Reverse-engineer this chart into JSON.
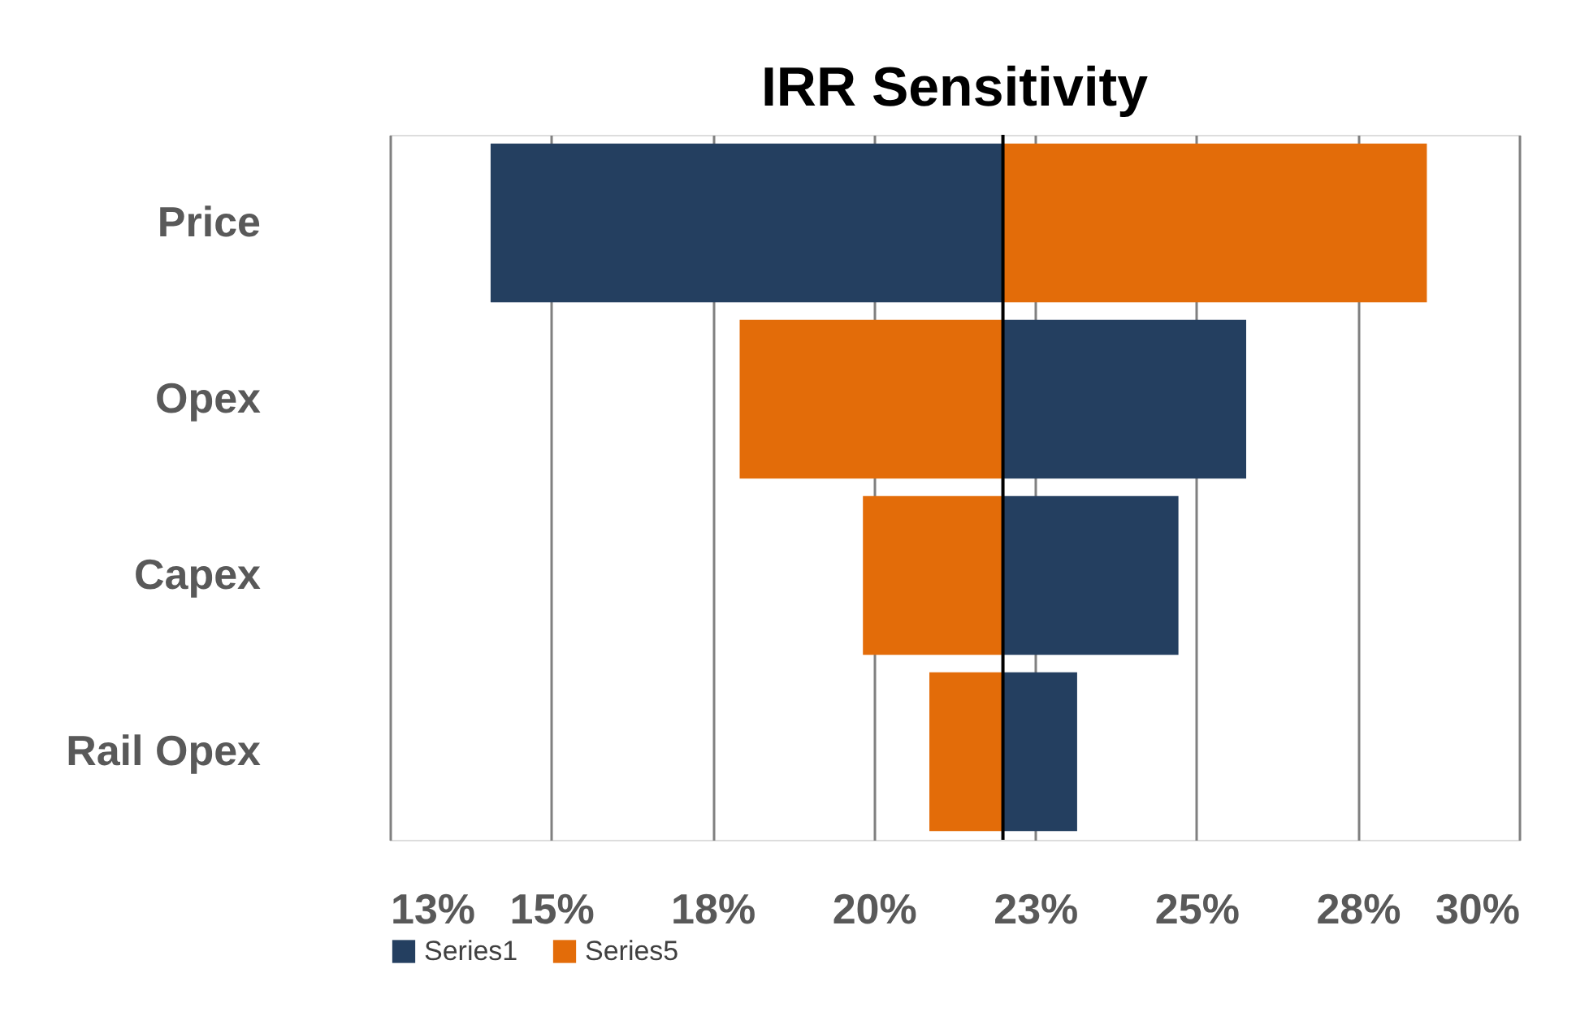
{
  "chart_data": {
    "type": "bar",
    "orientation": "horizontal",
    "title": "IRR Sensitivity",
    "categories": [
      "Price",
      "Opex",
      "Capex",
      "Rail Opex"
    ],
    "series": [
      {
        "name": "Series1",
        "color": "#243f60",
        "base": [
          14.06,
          22.0,
          22.0,
          22.0
        ],
        "values": [
          7.94,
          3.77,
          2.72,
          1.15
        ]
      },
      {
        "name": "Series5",
        "color": "#e36c09",
        "base": [
          22.0,
          17.92,
          19.83,
          20.86
        ],
        "values": [
          6.57,
          4.08,
          2.17,
          1.14
        ]
      }
    ],
    "xlim": [
      12.5,
      30
    ],
    "xticks": [
      {
        "value": 12.5,
        "label": "13%"
      },
      {
        "value": 15,
        "label": "15%"
      },
      {
        "value": 17.5,
        "label": "18%"
      },
      {
        "value": 20,
        "label": "20%"
      },
      {
        "value": 22.5,
        "label": "23%"
      },
      {
        "value": 25,
        "label": "25%"
      },
      {
        "value": 27.5,
        "label": "28%"
      },
      {
        "value": 30,
        "label": "30%"
      }
    ],
    "ref_lines": [
      {
        "axis": "x",
        "value": 22.0,
        "color": "#000000"
      }
    ],
    "grid": "x",
    "legend": "bottom"
  }
}
